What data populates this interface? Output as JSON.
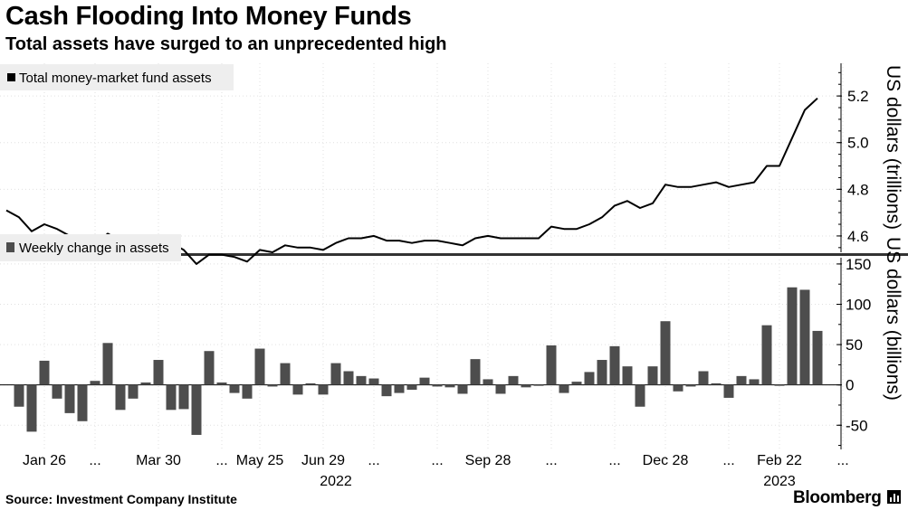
{
  "header": {
    "title": "Cash Flooding Into Money Funds",
    "subtitle": "Total assets have surged to an unprecedented high"
  },
  "footer": {
    "source": "Source: Investment Company Institute",
    "brand": "Bloomberg"
  },
  "colors": {
    "line": "#000000",
    "bar": "#4d4d4d",
    "grid": "#e0e0e0",
    "axis": "#000000",
    "legend_bg": "#eeeeee",
    "divider": "#333333"
  },
  "chart_data": [
    {
      "type": "line",
      "legend": "Total money-market fund assets",
      "legend_placement": "top-left",
      "ylabel": "US dollars (trillions)",
      "ylim": [
        4.53,
        5.34
      ],
      "yticks": [
        "4.6",
        "4.8",
        "5.0",
        "5.2"
      ],
      "ytick_values": [
        4.6,
        4.8,
        5.0,
        5.2
      ],
      "grid": true,
      "series": [
        {
          "values": [
            4.71,
            4.68,
            4.62,
            4.65,
            4.63,
            4.6,
            4.56,
            4.56,
            4.61,
            4.58,
            4.57,
            4.57,
            4.6,
            4.57,
            4.54,
            4.48,
            4.52,
            4.52,
            4.51,
            4.49,
            4.54,
            4.53,
            4.56,
            4.55,
            4.55,
            4.54,
            4.57,
            4.59,
            4.59,
            4.6,
            4.58,
            4.58,
            4.57,
            4.58,
            4.58,
            4.57,
            4.56,
            4.59,
            4.6,
            4.59,
            4.59,
            4.59,
            4.59,
            4.64,
            4.63,
            4.63,
            4.65,
            4.68,
            4.73,
            4.75,
            4.72,
            4.74,
            4.82,
            4.81,
            4.81,
            4.82,
            4.83,
            4.81,
            4.82,
            4.83,
            4.9,
            4.9,
            5.02,
            5.14,
            5.19
          ]
        }
      ]
    },
    {
      "type": "bar",
      "legend": "Weekly change in assets",
      "legend_placement": "top-left",
      "ylabel": "US dollars (billions)",
      "ylim": [
        -80,
        160
      ],
      "yticks": [
        "-50",
        "0",
        "50",
        "100",
        "150"
      ],
      "ytick_values": [
        -50,
        0,
        50,
        100,
        150
      ],
      "grid": true,
      "series": [
        {
          "values": [
            -27,
            -58,
            30,
            -17,
            -35,
            -45,
            5,
            52,
            -31,
            -17,
            3,
            31,
            -31,
            -30,
            -62,
            42,
            3,
            -10,
            -17,
            45,
            -2,
            27,
            -12,
            2,
            -12,
            27,
            17,
            11,
            8,
            -14,
            -10,
            -6,
            9,
            -2,
            -3,
            -11,
            32,
            7,
            -11,
            11,
            -3,
            -1,
            49,
            -10,
            4,
            16,
            31,
            48,
            23,
            -27,
            23,
            79,
            -8,
            -2,
            17,
            2,
            -16,
            11,
            7,
            74,
            -1,
            121,
            118,
            67
          ]
        }
      ]
    }
  ],
  "x_axis": {
    "tick_labels": [
      "Jan 26",
      "...",
      "Mar 30",
      "...",
      "May 25",
      "Jun 29",
      "...",
      "...",
      "Sep 28",
      "...",
      "...",
      "Dec 28",
      "...",
      "Feb 22",
      "..."
    ],
    "tick_index": [
      3,
      7,
      12,
      17,
      20,
      25,
      29,
      34,
      38,
      43,
      48,
      52,
      57,
      61,
      66
    ],
    "year_labels": [
      "2022",
      "2023"
    ],
    "year_index": [
      26,
      61
    ]
  }
}
